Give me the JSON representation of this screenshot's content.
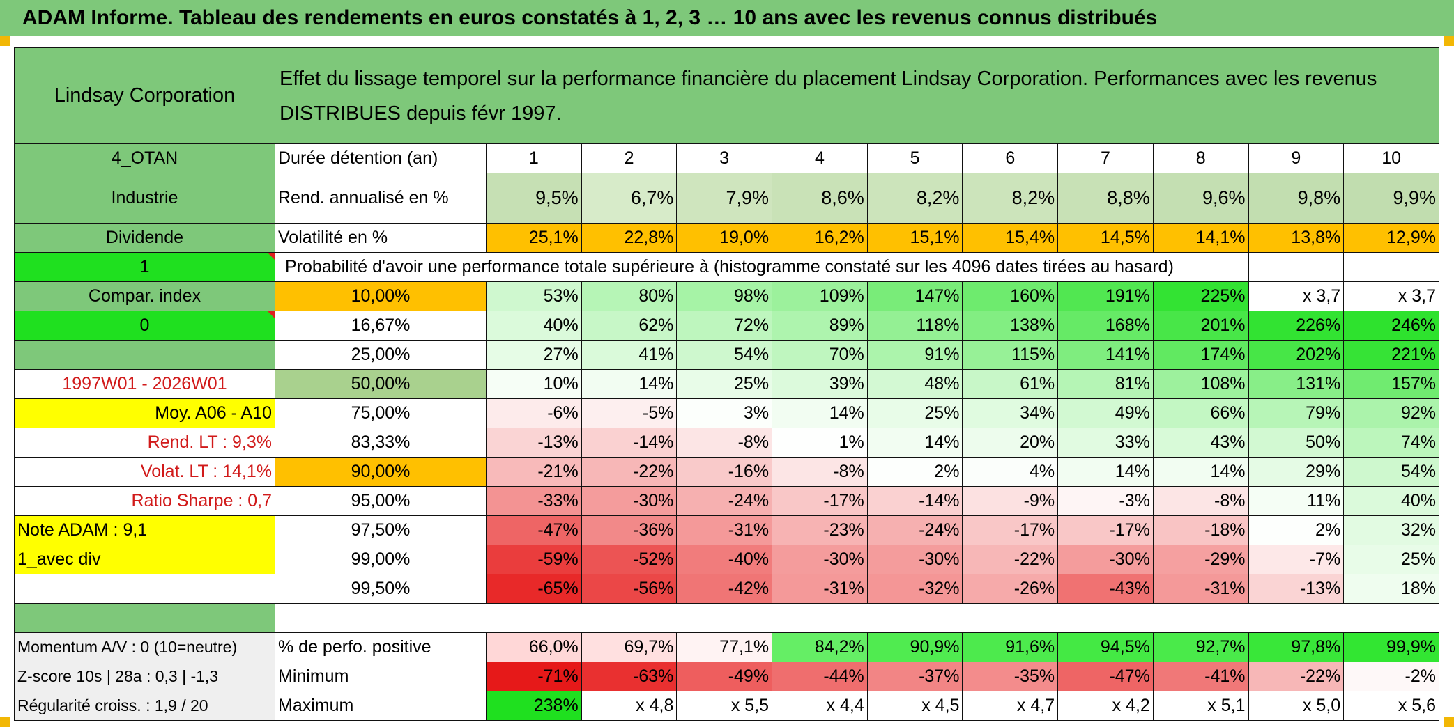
{
  "banner": "ADAM Informe. Tableau des rendements en euros constatés à 1, 2, 3 … 10 ans avec les revenus connus distribués",
  "header": {
    "company": "Lindsay Corporation",
    "description_line1": "Effet du lissage temporel sur la performance financière du placement Lindsay Corporation. Performances avec les revenus",
    "description_line2": "DISTRIBUES depuis févr 1997."
  },
  "left_panel": {
    "code": "4_OTAN",
    "sector": "Industrie",
    "income": "Dividende",
    "flag_value_1": "1",
    "compar_index": "Compar. index",
    "flag_value_0": "0",
    "period": "1997W01 - 2026W01",
    "moy": "Moy. A06 - A10",
    "rend_lt": "Rend. LT :   9,3%",
    "volat_lt": "Volat. LT :   14,1%",
    "ratio_sharpe": "Ratio Sharpe :    0,7",
    "note_adam": "Note ADAM : 9,1",
    "avec_div": "1_avec div",
    "momentum": "Momentum A/V : 0 (10=neutre)",
    "zscore": "Z-score 10s | 28a : 0,3 | -1,3",
    "regularite": "Régularité croiss. : 1,9 / 20"
  },
  "row_labels": {
    "duree": "Durée détention (an)",
    "rend": "Rend. annualisé en %",
    "volat": "Volatilité en %",
    "proba": "Probabilité d'avoir une performance totale supérieure à (histogramme constaté sur les 4096 dates tirées au hasard)",
    "perf_pos": "% de perfo. positive",
    "minimum": "Minimum",
    "maximum": "Maximum"
  },
  "years": [
    "1",
    "2",
    "3",
    "4",
    "5",
    "6",
    "7",
    "8",
    "9",
    "10"
  ],
  "rend": [
    "9,5%",
    "6,7%",
    "7,9%",
    "8,6%",
    "8,2%",
    "8,2%",
    "8,8%",
    "9,6%",
    "9,8%",
    "9,9%"
  ],
  "volat": [
    "25,1%",
    "22,8%",
    "19,0%",
    "16,2%",
    "15,1%",
    "15,4%",
    "14,5%",
    "14,1%",
    "13,8%",
    "12,9%"
  ],
  "quantiles": [
    {
      "q": "10,00%",
      "v": [
        "53%",
        "80%",
        "98%",
        "109%",
        "147%",
        "160%",
        "191%",
        "225%",
        "x 3,7",
        "x 3,7"
      ]
    },
    {
      "q": "16,67%",
      "v": [
        "40%",
        "62%",
        "72%",
        "89%",
        "118%",
        "138%",
        "168%",
        "201%",
        "226%",
        "246%"
      ]
    },
    {
      "q": "25,00%",
      "v": [
        "27%",
        "41%",
        "54%",
        "70%",
        "91%",
        "115%",
        "141%",
        "174%",
        "202%",
        "221%"
      ]
    },
    {
      "q": "50,00%",
      "v": [
        "10%",
        "14%",
        "25%",
        "39%",
        "48%",
        "61%",
        "81%",
        "108%",
        "131%",
        "157%"
      ]
    },
    {
      "q": "75,00%",
      "v": [
        "-6%",
        "-5%",
        "3%",
        "14%",
        "25%",
        "34%",
        "49%",
        "66%",
        "79%",
        "92%"
      ]
    },
    {
      "q": "83,33%",
      "v": [
        "-13%",
        "-14%",
        "-8%",
        "1%",
        "14%",
        "20%",
        "33%",
        "43%",
        "50%",
        "74%"
      ]
    },
    {
      "q": "90,00%",
      "v": [
        "-21%",
        "-22%",
        "-16%",
        "-8%",
        "2%",
        "4%",
        "14%",
        "14%",
        "29%",
        "54%"
      ]
    },
    {
      "q": "95,00%",
      "v": [
        "-33%",
        "-30%",
        "-24%",
        "-17%",
        "-14%",
        "-9%",
        "-3%",
        "-8%",
        "11%",
        "40%"
      ]
    },
    {
      "q": "97,50%",
      "v": [
        "-47%",
        "-36%",
        "-31%",
        "-23%",
        "-24%",
        "-17%",
        "-17%",
        "-18%",
        "2%",
        "32%"
      ]
    },
    {
      "q": "99,00%",
      "v": [
        "-59%",
        "-52%",
        "-40%",
        "-30%",
        "-30%",
        "-22%",
        "-30%",
        "-29%",
        "-7%",
        "25%"
      ]
    },
    {
      "q": "99,50%",
      "v": [
        "-65%",
        "-56%",
        "-42%",
        "-31%",
        "-32%",
        "-26%",
        "-43%",
        "-31%",
        "-13%",
        "18%"
      ]
    }
  ],
  "perf_pos": [
    "66,0%",
    "69,7%",
    "77,1%",
    "84,2%",
    "90,9%",
    "91,6%",
    "94,5%",
    "92,7%",
    "97,8%",
    "99,9%"
  ],
  "minimum": [
    "-71%",
    "-63%",
    "-49%",
    "-44%",
    "-37%",
    "-35%",
    "-47%",
    "-41%",
    "-22%",
    "-2%"
  ],
  "maximum": [
    "238%",
    "x 4,8",
    "x 5,5",
    "x 4,4",
    "x 4,5",
    "x 4,7",
    "x 4,2",
    "x 5,1",
    "x 5,0",
    "x 5,6"
  ],
  "colors": {
    "header_green": "#7ec87a",
    "bright_green": "#1fe01f",
    "yellow": "#ffff00",
    "orange": "#ffc000",
    "olive": "#a9d18e",
    "positive": "#39e339",
    "negative": "#e81e1e"
  }
}
